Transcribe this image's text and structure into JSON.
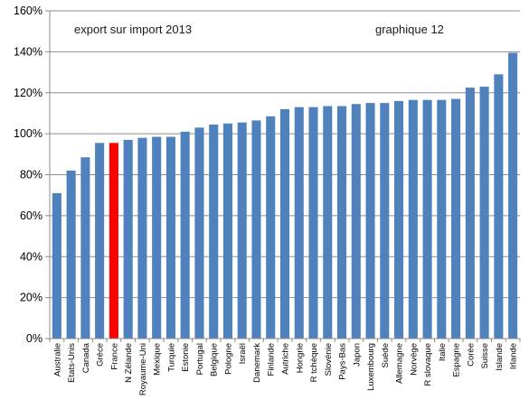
{
  "chart_data": {
    "type": "bar",
    "title": "",
    "xlabel": "",
    "ylabel": "",
    "annotations": [
      "export sur import 2013",
      "graphique 12"
    ],
    "categories": [
      "Australie",
      "Etats-Unis",
      "Canada",
      "Grèce",
      "France",
      "N Zélande",
      "Royaume-Uni",
      "Mexique",
      "Turquie",
      "Estonie",
      "Portugal",
      "Belgique",
      "Pologne",
      "Israël",
      "Danemark",
      "Finlande",
      "Autriche",
      "Hongrie",
      "R tchèque",
      "Slovénie",
      "Pays-Bas",
      "Japon",
      "Luxembourg",
      "Suède",
      "Allemagne",
      "Norvège",
      "R slovaque",
      "Italie",
      "Espagne",
      "Corée",
      "Suisse",
      "Islande",
      "Irlande"
    ],
    "values": [
      0.71,
      0.82,
      0.885,
      0.955,
      0.955,
      0.97,
      0.98,
      0.985,
      0.985,
      1.01,
      1.03,
      1.045,
      1.05,
      1.055,
      1.065,
      1.085,
      1.12,
      1.13,
      1.13,
      1.135,
      1.135,
      1.145,
      1.15,
      1.15,
      1.16,
      1.165,
      1.165,
      1.165,
      1.17,
      1.225,
      1.23,
      1.29,
      1.395
    ],
    "highlight": "France",
    "yticks": [
      "0%",
      "20%",
      "40%",
      "60%",
      "80%",
      "100%",
      "120%",
      "140%",
      "160%"
    ],
    "ylim": [
      0,
      1.6
    ],
    "grid": true,
    "legend": "none",
    "colors": {
      "bar": "#4f81bd",
      "highlight": "#ff0000",
      "grid": "#8c8c8c",
      "axis": "#8c8c8c"
    }
  }
}
